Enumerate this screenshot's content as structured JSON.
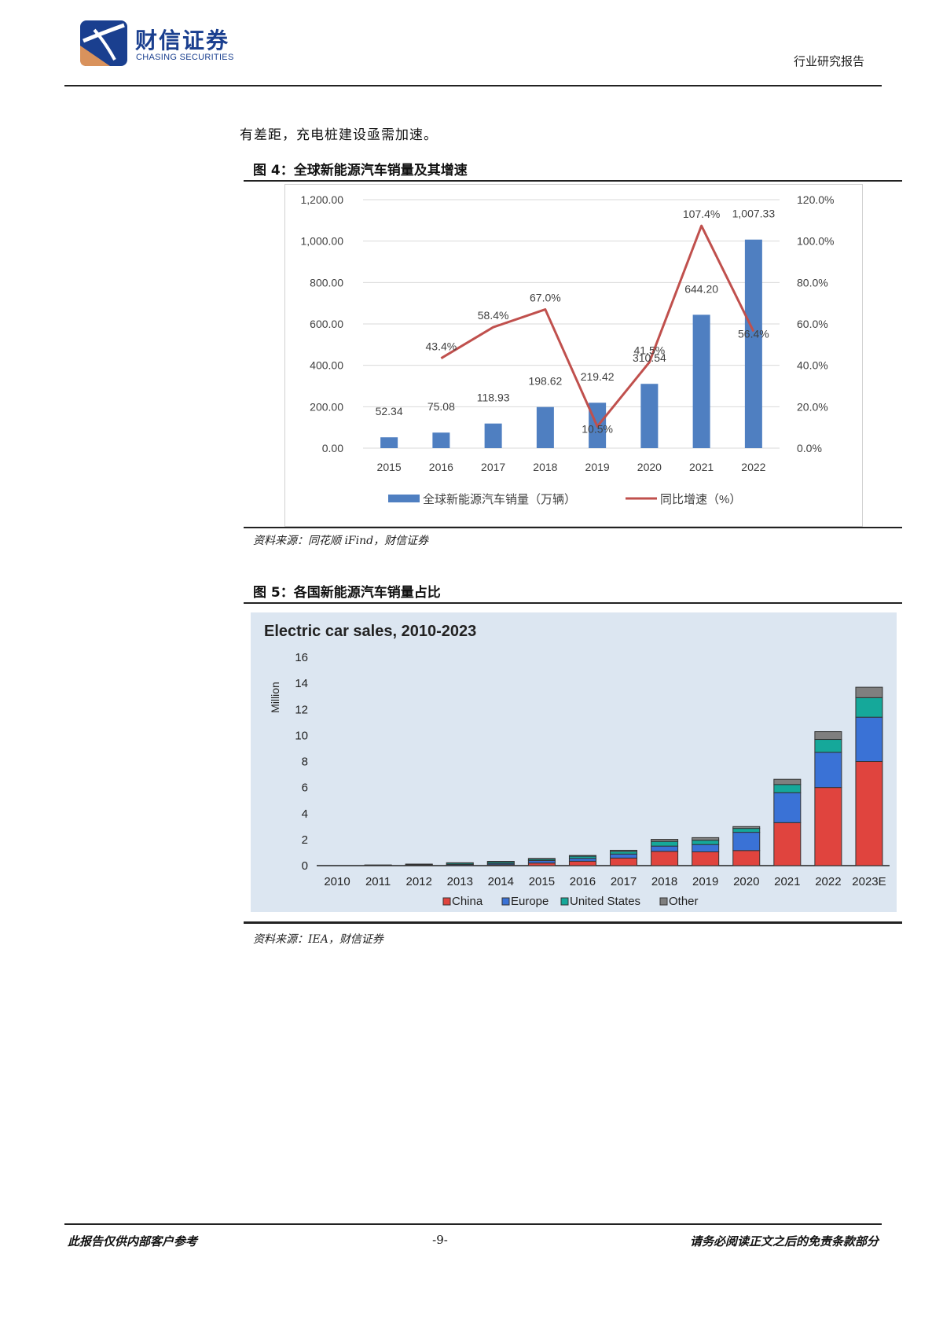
{
  "header": {
    "company_cn": "财信证券",
    "company_en": "CHASING SECURITIES",
    "report_type": "行业研究报告"
  },
  "body_text": "有差距，充电桩建设亟需加速。",
  "figure4": {
    "title": "图 4：全球新能源汽车销量及其增速",
    "source": "资料来源：同花顺 iFind，财信证券"
  },
  "figure5": {
    "title": "图 5：各国新能源汽车销量占比",
    "source": "资料来源：IEA，财信证券"
  },
  "footer": {
    "left": "此报告仅供内部客户参考",
    "page": "-9-",
    "right": "请务必阅读正文之后的免责条款部分"
  },
  "colors": {
    "bar_blue": "#4f7fc1",
    "line_red": "#c0504d",
    "china": "#e0443e",
    "europe": "#3a72d6",
    "united_states": "#15a89a",
    "other": "#7f7f7f",
    "chart5_bg": "#dce6f1",
    "logo_blue": "#1a3f8f"
  },
  "chart_data": [
    {
      "type": "bar+line",
      "categories": [
        "2015",
        "2016",
        "2017",
        "2018",
        "2019",
        "2020",
        "2021",
        "2022"
      ],
      "series": [
        {
          "name": "全球新能源汽车销量（万辆）",
          "kind": "bar",
          "axis": "left",
          "values": [
            52.34,
            75.08,
            118.93,
            198.62,
            219.42,
            310.54,
            644.2,
            1007.33
          ],
          "labels": [
            "52.34",
            "75.08",
            "118.93",
            "198.62",
            "219.42",
            "310.54",
            "644.20",
            "1,007.33"
          ]
        },
        {
          "name": "同比增速（%）",
          "kind": "line",
          "axis": "right",
          "values": [
            null,
            43.4,
            58.4,
            67.0,
            10.5,
            41.5,
            107.4,
            56.4
          ],
          "labels": [
            "",
            "43.4%",
            "58.4%",
            "67.0%",
            "10.5%",
            "41.5%",
            "107.4%",
            "56.4%"
          ]
        }
      ],
      "left_axis": {
        "ylim": [
          0,
          1200
        ],
        "ticks": [
          "0.00",
          "200.00",
          "400.00",
          "600.00",
          "800.00",
          "1,000.00",
          "1,200.00"
        ]
      },
      "right_axis": {
        "ylim": [
          0,
          120
        ],
        "ticks": [
          "0.0%",
          "20.0%",
          "40.0%",
          "60.0%",
          "80.0%",
          "100.0%",
          "120.0%"
        ]
      },
      "legend_position": "bottom",
      "grid": true
    },
    {
      "type": "stacked-bar",
      "title": "Electric car sales, 2010-2023",
      "ylabel": "Million",
      "ylim": [
        0,
        16
      ],
      "y_ticks": [
        "0",
        "2",
        "4",
        "6",
        "8",
        "10",
        "12",
        "14",
        "16"
      ],
      "categories": [
        "2010",
        "2011",
        "2012",
        "2013",
        "2014",
        "2015",
        "2016",
        "2017",
        "2018",
        "2019",
        "2020",
        "2021",
        "2022",
        "2023E"
      ],
      "series": [
        {
          "name": "China",
          "values": [
            0.0,
            0.01,
            0.02,
            0.02,
            0.07,
            0.2,
            0.34,
            0.58,
            1.1,
            1.06,
            1.16,
            3.3,
            6.0,
            8.0
          ]
        },
        {
          "name": "Europe",
          "values": [
            0.0,
            0.01,
            0.03,
            0.07,
            0.1,
            0.19,
            0.22,
            0.31,
            0.4,
            0.56,
            1.4,
            2.3,
            2.7,
            3.4
          ]
        },
        {
          "name": "United States",
          "values": [
            0.0,
            0.02,
            0.05,
            0.1,
            0.12,
            0.11,
            0.16,
            0.2,
            0.36,
            0.33,
            0.3,
            0.63,
            0.99,
            1.5
          ]
        },
        {
          "name": "Other",
          "values": [
            0.0,
            0.01,
            0.02,
            0.03,
            0.04,
            0.05,
            0.06,
            0.09,
            0.16,
            0.2,
            0.14,
            0.4,
            0.6,
            0.8
          ]
        }
      ],
      "legend_position": "bottom",
      "grid": false
    }
  ]
}
